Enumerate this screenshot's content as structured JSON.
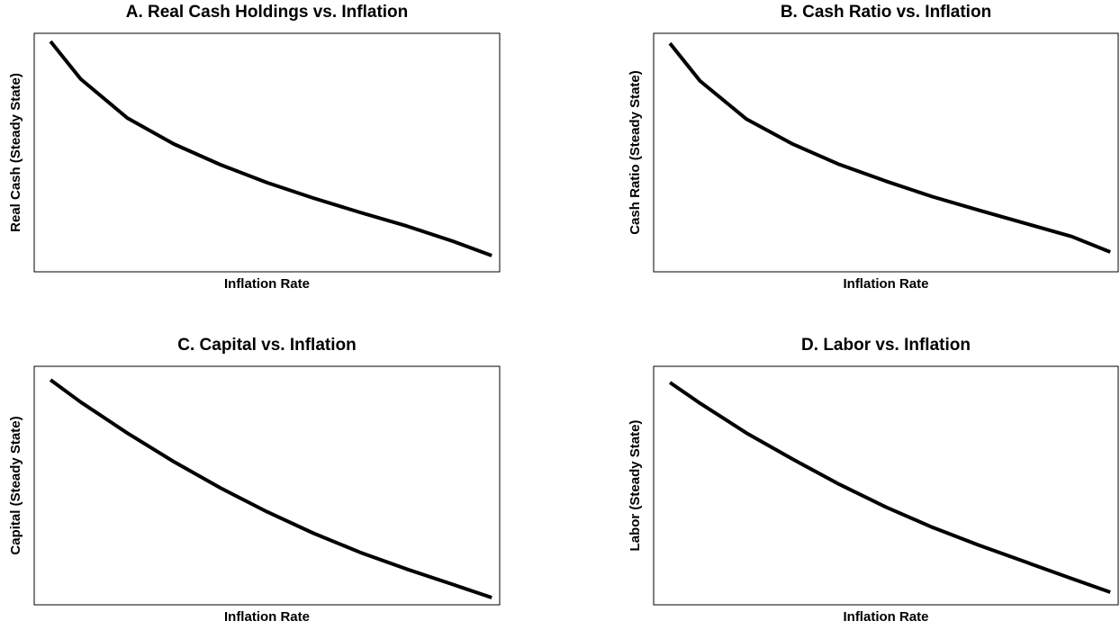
{
  "chart_data": [
    {
      "type": "line",
      "title": "A. Real Cash Holdings vs. Inflation",
      "x_label": "Inflation Rate",
      "y_label": "Real Cash (Steady State)",
      "x": [
        0.035,
        0.1,
        0.2,
        0.3,
        0.4,
        0.5,
        0.6,
        0.7,
        0.8,
        0.9,
        0.983
      ],
      "values": [
        0.966,
        0.808,
        0.645,
        0.536,
        0.449,
        0.374,
        0.309,
        0.249,
        0.192,
        0.128,
        0.068
      ],
      "xlim": [
        0,
        1
      ],
      "ylim": [
        0,
        1
      ],
      "color": "#000000"
    },
    {
      "type": "line",
      "title": "B. Cash Ratio vs. Inflation",
      "x_label": "Inflation Rate",
      "y_label": "Cash Ratio (Steady State)",
      "x": [
        0.035,
        0.1,
        0.2,
        0.3,
        0.4,
        0.5,
        0.6,
        0.7,
        0.8,
        0.9,
        0.983
      ],
      "values": [
        0.958,
        0.8,
        0.64,
        0.535,
        0.45,
        0.38,
        0.315,
        0.258,
        0.203,
        0.148,
        0.083
      ],
      "xlim": [
        0,
        1
      ],
      "ylim": [
        0,
        1
      ],
      "color": "#000000"
    },
    {
      "type": "line",
      "title": "C. Capital vs. Inflation",
      "x_label": "Inflation Rate",
      "y_label": "Capital (Steady State)",
      "x": [
        0.035,
        0.1,
        0.2,
        0.3,
        0.4,
        0.5,
        0.6,
        0.7,
        0.8,
        0.9,
        0.983
      ],
      "values": [
        0.943,
        0.85,
        0.72,
        0.6,
        0.49,
        0.39,
        0.3,
        0.22,
        0.15,
        0.085,
        0.03
      ],
      "xlim": [
        0,
        1
      ],
      "ylim": [
        0,
        1
      ],
      "color": "#000000"
    },
    {
      "type": "line",
      "title": "D. Labor vs. Inflation",
      "x_label": "Inflation Rate",
      "y_label": "Labor (Steady State)",
      "x": [
        0.035,
        0.1,
        0.2,
        0.3,
        0.4,
        0.5,
        0.6,
        0.7,
        0.8,
        0.9,
        0.983
      ],
      "values": [
        0.932,
        0.845,
        0.72,
        0.61,
        0.505,
        0.41,
        0.325,
        0.25,
        0.18,
        0.11,
        0.053
      ],
      "xlim": [
        0,
        1
      ],
      "ylim": [
        0,
        1
      ],
      "color": "#000000"
    }
  ]
}
